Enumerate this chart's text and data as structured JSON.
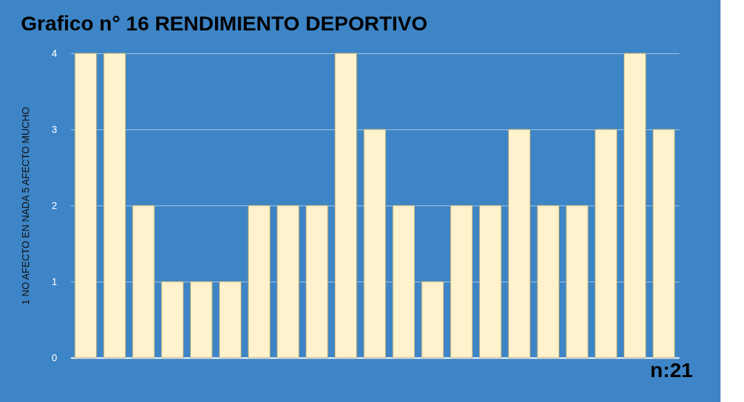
{
  "chart_data": {
    "type": "bar",
    "title": "Grafico n° 16 RENDIMIENTO DEPORTIVO",
    "ylabel": "1 NO AFECTO EN NADA 5 AFECTO MUCHO",
    "categories": [
      null,
      null,
      null,
      null,
      null,
      null,
      null,
      null,
      null,
      null,
      null,
      null,
      null,
      null,
      null,
      null,
      null,
      null,
      null,
      null,
      null
    ],
    "values": [
      4,
      4,
      2,
      1,
      1,
      1,
      2,
      2,
      2,
      4,
      3,
      2,
      1,
      2,
      2,
      3,
      2,
      2,
      3,
      4,
      3
    ],
    "color": "#fff2cc",
    "ylim": [
      0,
      4
    ],
    "yticks": [
      0,
      1,
      2,
      3,
      4
    ],
    "grid": "y",
    "tick_labels": "y",
    "annotations": [
      "n:21"
    ]
  }
}
